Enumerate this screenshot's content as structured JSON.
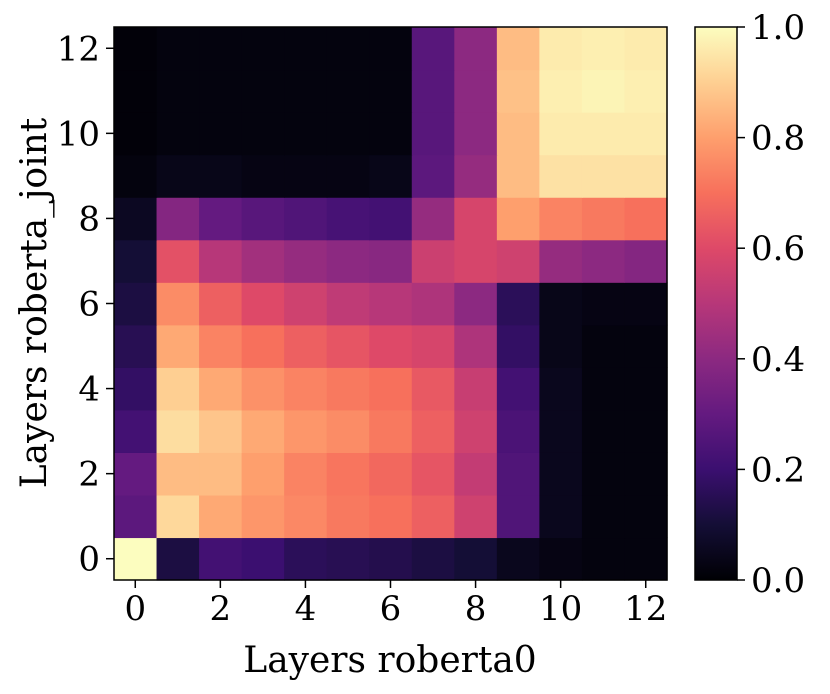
{
  "chart_data": {
    "type": "heatmap",
    "title": "",
    "xlabel": "Layers roberta0",
    "ylabel": "Layers roberta_joint",
    "x": [
      0,
      1,
      2,
      3,
      4,
      5,
      6,
      7,
      8,
      9,
      10,
      11,
      12
    ],
    "y": [
      0,
      1,
      2,
      3,
      4,
      5,
      6,
      7,
      8,
      9,
      10,
      11,
      12
    ],
    "xticks": [
      "0",
      "2",
      "4",
      "6",
      "8",
      "10",
      "12"
    ],
    "yticks": [
      "0",
      "2",
      "4",
      "6",
      "8",
      "10",
      "12"
    ],
    "colormap": "magma",
    "clim": [
      0.0,
      1.0
    ],
    "colorbar_ticks": [
      "0.0",
      "0.2",
      "0.4",
      "0.6",
      "0.8",
      "1.0"
    ],
    "values": [
      [
        1.0,
        0.12,
        0.22,
        0.2,
        0.16,
        0.15,
        0.14,
        0.12,
        0.1,
        0.05,
        0.03,
        0.02,
        0.02
      ],
      [
        0.28,
        0.92,
        0.82,
        0.78,
        0.75,
        0.72,
        0.7,
        0.66,
        0.56,
        0.25,
        0.05,
        0.02,
        0.02
      ],
      [
        0.3,
        0.86,
        0.86,
        0.8,
        0.74,
        0.71,
        0.68,
        0.63,
        0.53,
        0.25,
        0.05,
        0.02,
        0.02
      ],
      [
        0.22,
        0.93,
        0.88,
        0.82,
        0.78,
        0.76,
        0.72,
        0.66,
        0.56,
        0.24,
        0.05,
        0.02,
        0.02
      ],
      [
        0.18,
        0.9,
        0.82,
        0.77,
        0.74,
        0.72,
        0.7,
        0.64,
        0.54,
        0.22,
        0.05,
        0.02,
        0.02
      ],
      [
        0.15,
        0.82,
        0.74,
        0.7,
        0.66,
        0.63,
        0.6,
        0.58,
        0.48,
        0.18,
        0.04,
        0.02,
        0.02
      ],
      [
        0.12,
        0.76,
        0.66,
        0.6,
        0.56,
        0.52,
        0.5,
        0.48,
        0.4,
        0.16,
        0.04,
        0.03,
        0.03
      ],
      [
        0.1,
        0.62,
        0.5,
        0.45,
        0.42,
        0.4,
        0.39,
        0.55,
        0.58,
        0.56,
        0.42,
        0.4,
        0.38
      ],
      [
        0.06,
        0.38,
        0.3,
        0.27,
        0.25,
        0.23,
        0.22,
        0.42,
        0.58,
        0.8,
        0.74,
        0.72,
        0.7
      ],
      [
        0.02,
        0.04,
        0.04,
        0.03,
        0.03,
        0.03,
        0.04,
        0.28,
        0.42,
        0.86,
        0.94,
        0.94,
        0.94
      ],
      [
        0.01,
        0.02,
        0.02,
        0.02,
        0.02,
        0.02,
        0.02,
        0.27,
        0.4,
        0.86,
        0.96,
        0.96,
        0.96
      ],
      [
        0.01,
        0.02,
        0.02,
        0.02,
        0.02,
        0.02,
        0.02,
        0.27,
        0.4,
        0.87,
        0.97,
        0.98,
        0.97
      ],
      [
        0.01,
        0.02,
        0.02,
        0.02,
        0.02,
        0.02,
        0.02,
        0.27,
        0.4,
        0.86,
        0.96,
        0.97,
        0.96
      ]
    ]
  }
}
